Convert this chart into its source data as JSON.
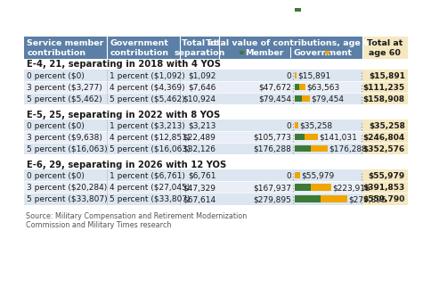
{
  "section_headers": [
    "E-4, 21, separating in 2018 with 4 YOS",
    "E-5, 25, separating in 2022 with 8 YOS",
    "E-6, 29, separating in 2026 with 12 YOS"
  ],
  "sections": [
    {
      "rows": [
        {
          "col0": "0 percent ($0)",
          "col1": "1 percent ($1,092)",
          "col2": "$1,092",
          "member_val": 0,
          "gov_val": 15891,
          "member_label": "0",
          "gov_label": "$15,891",
          "col4": "$15,891"
        },
        {
          "col0": "3 percent ($3,277)",
          "col1": "4 percent ($4,369)",
          "col2": "$7,646",
          "member_val": 47672,
          "gov_val": 63563,
          "member_label": "$47,672",
          "gov_label": "$63,563",
          "col4": "$111,235"
        },
        {
          "col0": "5 percent ($5,462)",
          "col1": "5 percent ($5,462)",
          "col2": "$10,924",
          "member_val": 79454,
          "gov_val": 79454,
          "member_label": "$79,454",
          "gov_label": "$79,454",
          "col4": "$158,908"
        }
      ]
    },
    {
      "rows": [
        {
          "col0": "0 percent ($0)",
          "col1": "1 percent ($3,213)",
          "col2": "$3,213",
          "member_val": 0,
          "gov_val": 35258,
          "member_label": "0",
          "gov_label": "$35,258",
          "col4": "$35,258"
        },
        {
          "col0": "3 percent ($9,638)",
          "col1": "4 percent ($12,851)",
          "col2": "$22,489",
          "member_val": 105773,
          "gov_val": 141031,
          "member_label": "$105,773",
          "gov_label": "$141,031",
          "col4": "$246,804"
        },
        {
          "col0": "5 percent ($16,063)",
          "col1": "5 percent ($16,063)",
          "col2": "$32,126",
          "member_val": 176288,
          "gov_val": 176288,
          "member_label": "$176,288",
          "gov_label": "$176,288",
          "col4": "$352,576"
        }
      ]
    },
    {
      "rows": [
        {
          "col0": "0 percent ($0)",
          "col1": "1 percent ($6,761)",
          "col2": "$6,761",
          "member_val": 0,
          "gov_val": 55979,
          "member_label": "0",
          "gov_label": "$55,979",
          "col4": "$55,979"
        },
        {
          "col0": "3 percent ($20,284)",
          "col1": "4 percent ($27,045)",
          "col2": "$47,329",
          "member_val": 167937,
          "gov_val": 223916,
          "member_label": "$167,937",
          "gov_label": "$223,916",
          "col4": "$391,853"
        },
        {
          "col0": "5 percent ($33,807)",
          "col1": "5 percent ($33,807)",
          "col2": "$67,614",
          "member_val": 279895,
          "gov_val": 279895,
          "member_label": "$279,895",
          "gov_label": "$279,895",
          "col4": "$559,790"
        }
      ]
    }
  ],
  "source_text": "Source: Military Compensation and Retirement Modernization\nCommission and Military Times research",
  "header_bg": "#5b7fa6",
  "header_text_color": "#ffffff",
  "row_bg_alt": "#dce6f1",
  "row_bg_norm": "#eaeff7",
  "last_col_bg": "#f5e8c0",
  "member_color": "#3d7a35",
  "gov_color": "#f0a500",
  "divider_color": "#999999",
  "bar_max": 279895,
  "font_size_header": 6.8,
  "font_size_row": 6.5,
  "font_size_section": 7.2,
  "font_size_source": 5.8
}
